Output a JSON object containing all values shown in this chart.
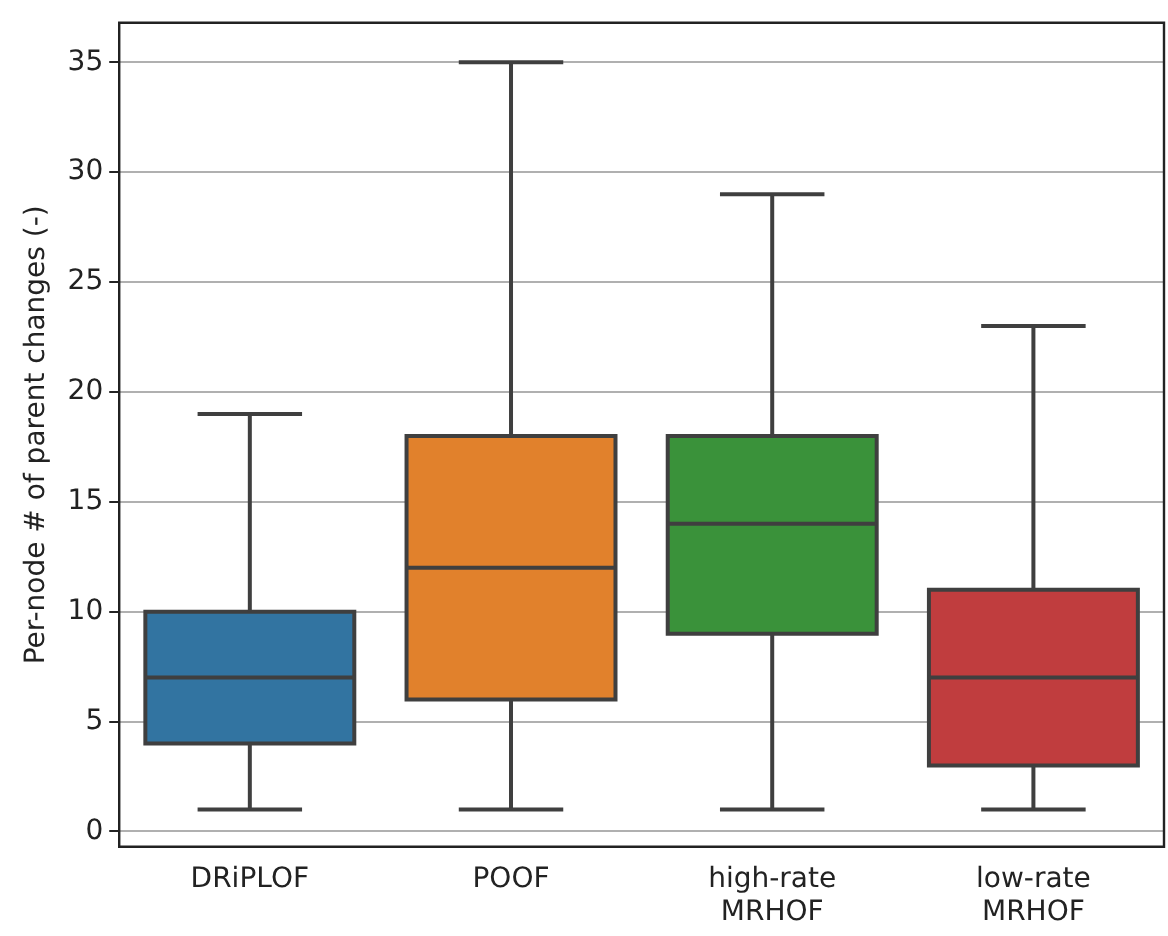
{
  "chart_data": {
    "type": "box",
    "ylabel": "Per-node # of parent changes (-)",
    "categories": [
      "DRiPLOF",
      "POOF",
      "high-rate MRHOF",
      "low-rate MRHOF"
    ],
    "colors": [
      "#3274a1",
      "#e1812c",
      "#3a923a",
      "#c03d3e"
    ],
    "boxes": [
      {
        "low": 1,
        "q1": 4,
        "median": 7,
        "q3": 10,
        "high": 19
      },
      {
        "low": 1,
        "q1": 6,
        "median": 12,
        "q3": 18,
        "high": 35
      },
      {
        "low": 1,
        "q1": 9,
        "median": 14,
        "q3": 18,
        "high": 29
      },
      {
        "low": 1,
        "q1": 3,
        "median": 7,
        "q3": 11,
        "high": 23
      }
    ],
    "ylim": [
      -0.7,
      36.8
    ],
    "yticks": [
      0,
      5,
      10,
      15,
      20,
      25,
      30,
      35
    ],
    "grid": "y"
  }
}
